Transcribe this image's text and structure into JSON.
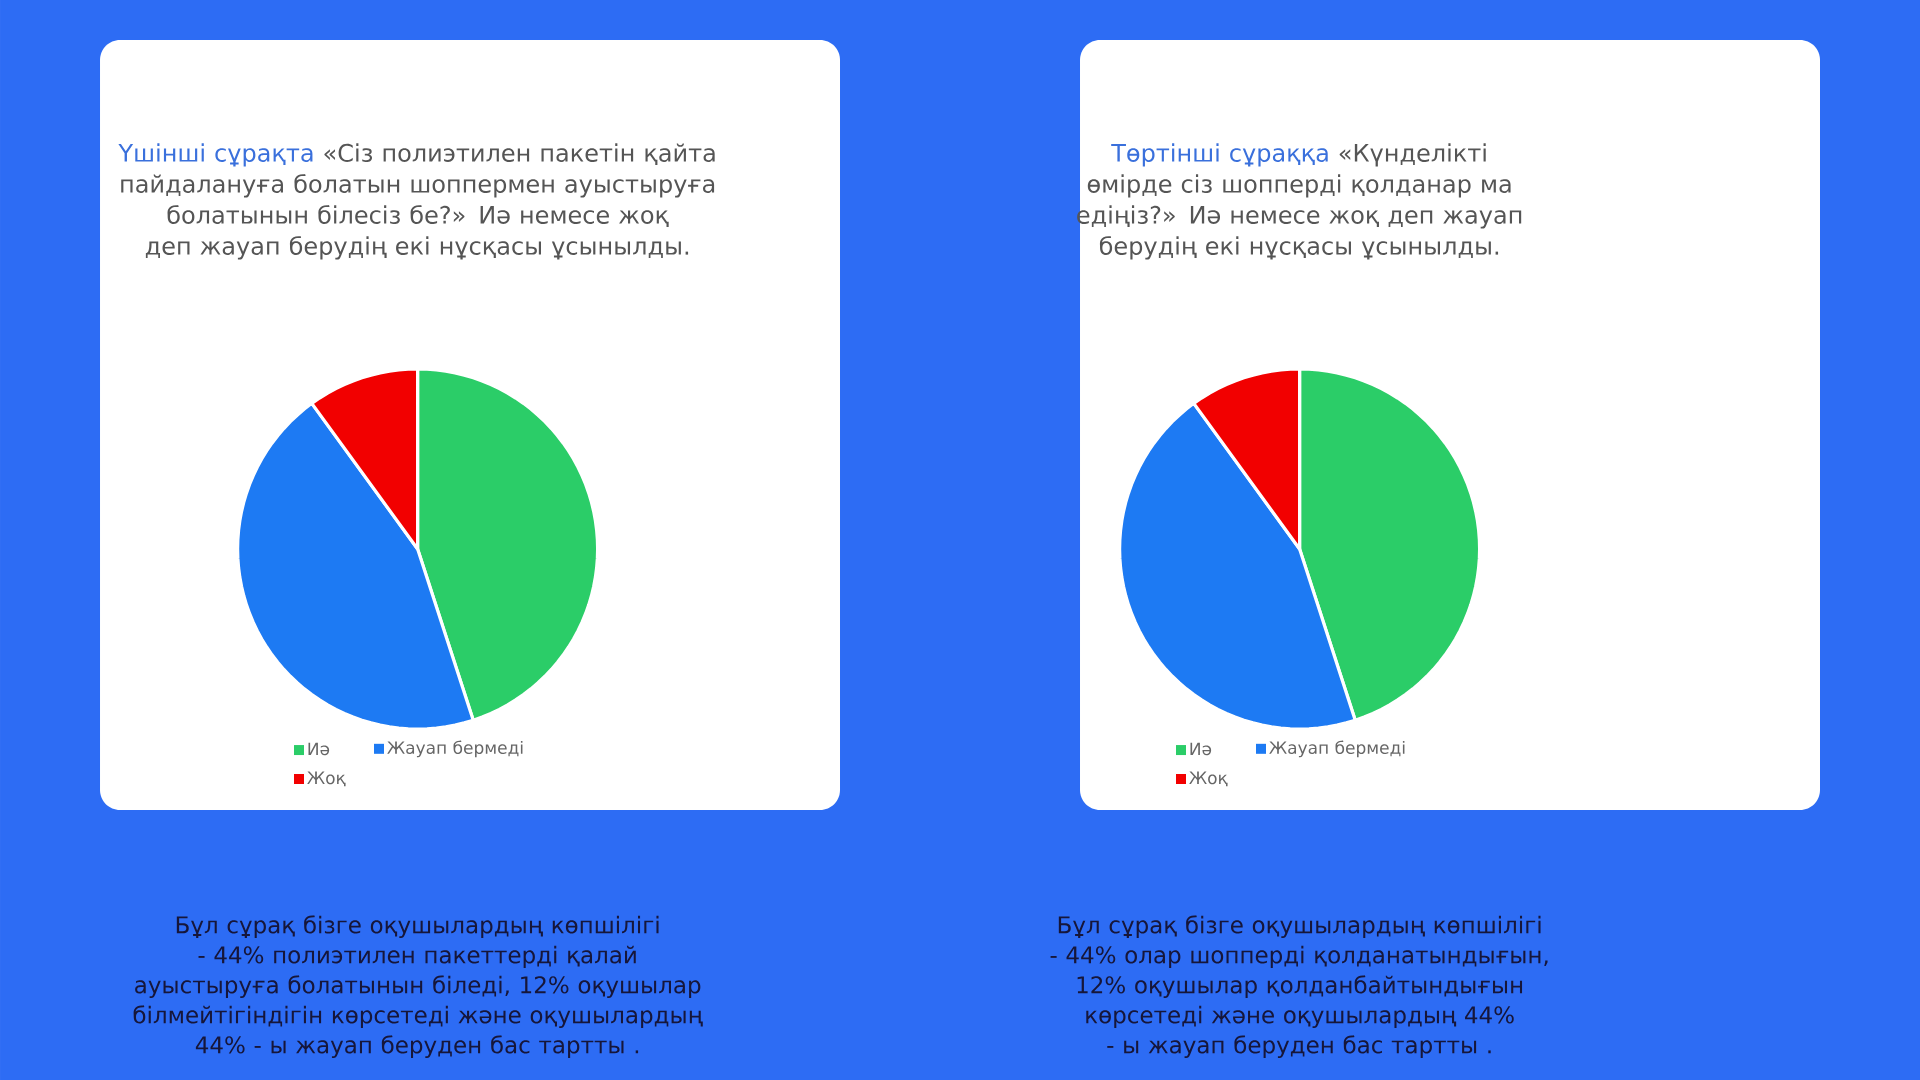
{
  "chart_data": [
    {
      "type": "pie",
      "title": "Үшінші сұрақта",
      "subtitle": "«Сіз полиэтилен пакетін қайта пайдалануға болатын шоппермен ауыстыруға болатынын білесіз бе?» Иә немесе жоқ деп жауап берудің екі нұсқасы ұсынылды.",
      "categories": [
        "Иә",
        "Жауап бермеді",
        "Жоқ"
      ],
      "values": [
        45,
        45,
        10
      ],
      "colors": [
        "#2bcd68",
        "#1d7af3",
        "#f20000"
      ],
      "legend": "bottom",
      "annotations": [
        "Бұл сұрақ бізге оқушылардың көпшілігі - 44% полиэтилен пакеттерді қалай ауыстыруға болатынын біледі, 12% оқушылар білмейтігіндігін көрсетеді және оқушылардың 44% - ы жауап беруден бас тартты ."
      ]
    },
    {
      "type": "pie",
      "title": "Төртінші сұраққа",
      "subtitle": "«Күнделікті өмірде сіз шопперді қолданар ма едіңіз?» Иә немесе жоқ деп жауап берудің екі нұсқасы ұсынылды.",
      "categories": [
        "Иә",
        "Жауап бермеді",
        "Жоқ"
      ],
      "values": [
        45,
        45,
        10
      ],
      "colors": [
        "#2bcd68",
        "#1d7af3",
        "#f20000"
      ],
      "legend": "bottom",
      "annotations": [
        "Бұл сұрақ бізге оқушылардың көпшілігі - 44% олар шопперді қолданатындығын, 12% оқушылар қолданбайтындығын көрсетеді және оқушылардың 44% - ы жауап беруден бас тартты ."
      ]
    }
  ]
}
